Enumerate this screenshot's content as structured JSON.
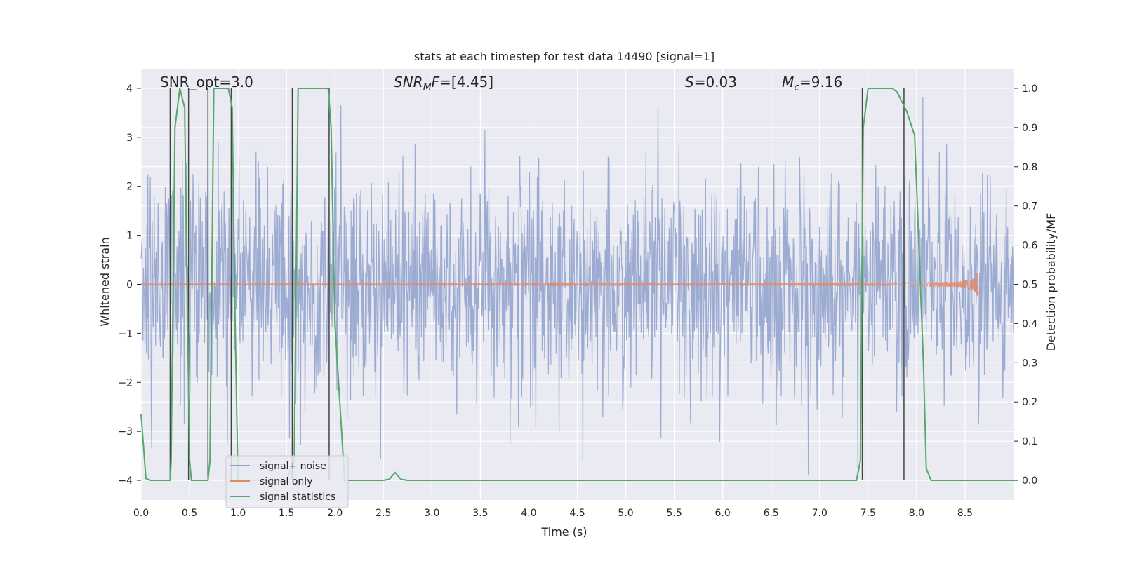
{
  "chart_data": {
    "type": "line",
    "title": "stats at each timestep for test data 14490 [signal=1]",
    "xlabel": "Time (s)",
    "ylabel_left": "Whitened strain",
    "ylabel_right": "Detection probability/MF",
    "xlim": [
      0.0,
      9.0
    ],
    "ylim_left": [
      -4.4,
      4.4
    ],
    "ylim_right": [
      -0.05,
      1.05
    ],
    "xticks": [
      "0.0",
      "0.5",
      "1.0",
      "1.5",
      "2.0",
      "2.5",
      "3.0",
      "3.5",
      "4.0",
      "4.5",
      "5.0",
      "5.5",
      "6.0",
      "6.5",
      "7.0",
      "7.5",
      "8.0",
      "8.5"
    ],
    "yticks_left": [
      "−4",
      "−3",
      "−2",
      "−1",
      "0",
      "1",
      "2",
      "3",
      "4"
    ],
    "yticks_right": [
      "0.0",
      "0.1",
      "0.2",
      "0.3",
      "0.4",
      "0.5",
      "0.6",
      "0.7",
      "0.8",
      "0.9",
      "1.0"
    ],
    "grid": true,
    "legend_position": "lower-left",
    "annotations": {
      "snr_opt": "SNR_opt=3.0",
      "snr_mf_base": "SNR",
      "snr_mf_sub": "M",
      "snr_mf_rest": "F=[4.45]",
      "s_sym": "S",
      "s_rest": "=0.03",
      "mc_sym": "M",
      "mc_sub": "c",
      "mc_rest": "=9.16"
    },
    "series": [
      {
        "name": "signal+ noise",
        "color": "#8da0cb",
        "description_range": [
          -3.9,
          3.9
        ],
        "noise_std": 1.1
      },
      {
        "name": "signal only",
        "color": "#e28a6b",
        "chirp_end_time": 8.65,
        "chirp_peak_amplitude": 0.35
      },
      {
        "name": "signal statistics",
        "color": "#55a868",
        "x": [
          0.0,
          0.05,
          0.1,
          0.2,
          0.3,
          0.31,
          0.35,
          0.4,
          0.45,
          0.5,
          0.52,
          0.56,
          0.6,
          0.69,
          0.71,
          0.75,
          0.8,
          0.9,
          0.94,
          0.97,
          1.0,
          1.05,
          1.5,
          1.58,
          1.62,
          1.7,
          1.93,
          1.96,
          2.0,
          2.1,
          2.5,
          2.56,
          2.62,
          2.68,
          2.75,
          3.0,
          7.38,
          7.42,
          7.45,
          7.5,
          7.75,
          7.8,
          7.9,
          7.98,
          8.07,
          8.1,
          8.15,
          8.3,
          8.5,
          9.0
        ],
        "y": [
          0.17,
          0.005,
          0.0,
          0.0,
          0.0,
          0.05,
          0.9,
          1.0,
          0.95,
          0.05,
          0.0,
          0.0,
          0.0,
          0.0,
          0.05,
          1.0,
          1.0,
          1.0,
          0.95,
          0.4,
          0.0,
          0.0,
          0.0,
          0.05,
          1.0,
          1.0,
          1.0,
          0.9,
          0.4,
          0.0,
          0.0,
          0.003,
          0.02,
          0.003,
          0.0,
          0.0,
          0.0,
          0.05,
          0.9,
          1.0,
          1.0,
          0.99,
          0.94,
          0.88,
          0.3,
          0.03,
          0.0,
          0.0,
          0.0,
          0.0
        ]
      }
    ],
    "vlines": [
      0.3,
      0.49,
      0.69,
      0.93,
      1.56,
      1.94,
      7.44,
      7.87
    ],
    "noise_spike_times_left_peaks": [
      0.43,
      0.5,
      1.06,
      2.16,
      3.03,
      3.38,
      3.63,
      4.48,
      5.51,
      6.63,
      7.72,
      8.28
    ]
  }
}
